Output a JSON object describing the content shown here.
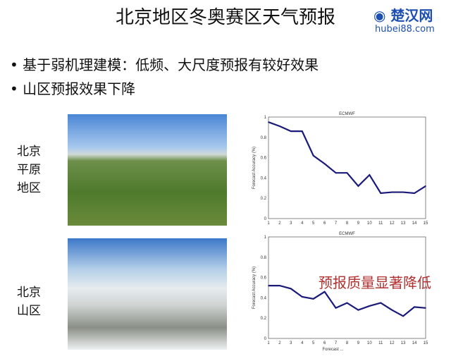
{
  "title": "北京地区冬奥赛区天气预报",
  "bullets": [
    "基于弱机理建模：低频、大尺度预报有较好效果",
    "山区预报效果下降"
  ],
  "labels": {
    "plain": "北京平原地区",
    "mountain": "北京山区"
  },
  "annotation": "预报质量显著降低",
  "watermark": {
    "name": "楚汉网",
    "url": "hubei88.com"
  },
  "chart_data": [
    {
      "type": "line",
      "title": "ECMWF",
      "ylabel": "Forecast Accuracy (%)",
      "xlabel": "",
      "x": [
        1,
        2,
        3,
        4,
        5,
        6,
        7,
        8,
        9,
        10,
        11,
        12,
        13,
        14,
        15
      ],
      "values": [
        0.95,
        0.91,
        0.86,
        0.86,
        0.62,
        0.54,
        0.45,
        0.45,
        0.32,
        0.43,
        0.25,
        0.26,
        0.26,
        0.25,
        0.32
      ],
      "xlim": [
        1,
        15
      ],
      "ylim": [
        0,
        1
      ],
      "yticks": [
        "0",
        "0.2",
        "0.4",
        "0.6",
        "0.8",
        "1"
      ],
      "color": "#1a1a7a"
    },
    {
      "type": "line",
      "title": "ECMWF",
      "ylabel": "Forecast Accuracy (%)",
      "xlabel": "Forecast ...",
      "x": [
        1,
        2,
        3,
        4,
        5,
        6,
        7,
        8,
        9,
        10,
        11,
        12,
        13,
        14,
        15
      ],
      "values": [
        0.52,
        0.52,
        0.49,
        0.41,
        0.39,
        0.46,
        0.3,
        0.35,
        0.28,
        0.32,
        0.35,
        0.28,
        0.22,
        0.31,
        0.3
      ],
      "xlim": [
        1,
        15
      ],
      "ylim": [
        0,
        1
      ],
      "yticks": [
        "0",
        "0.2",
        "0.4",
        "0.6",
        "0.8",
        "1"
      ],
      "color": "#1a1a7a"
    }
  ]
}
